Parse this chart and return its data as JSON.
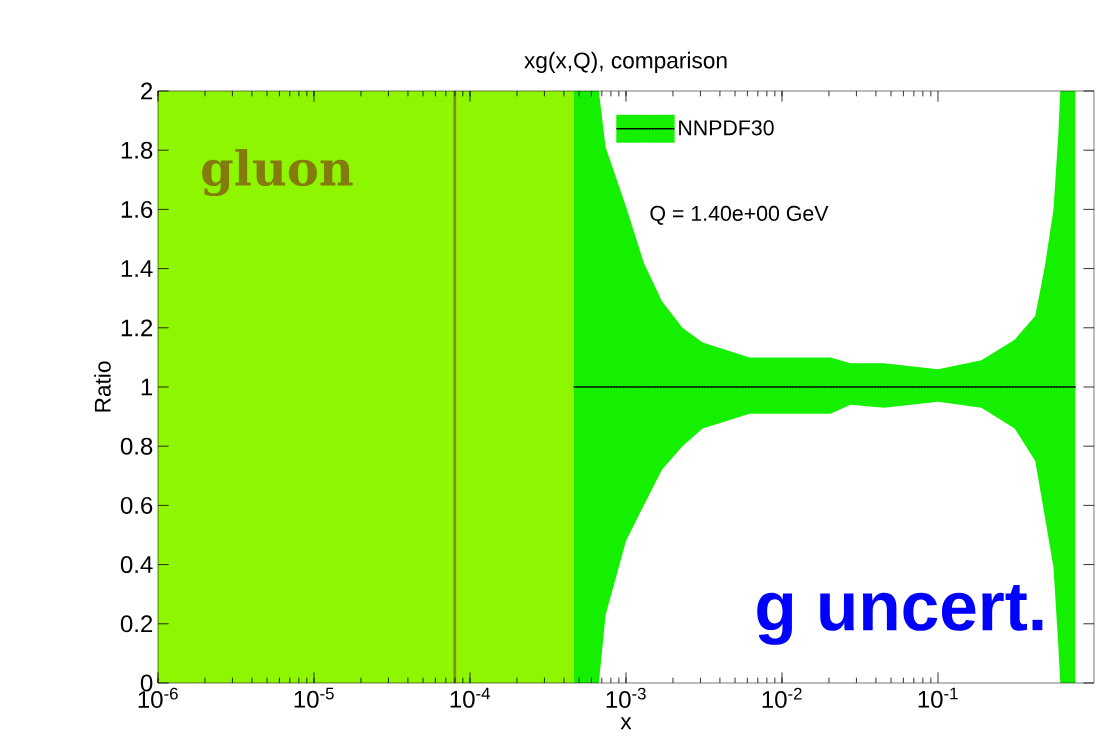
{
  "chart_data": {
    "type": "line",
    "title": "xg(x,Q), comparison",
    "xlabel": "x",
    "ylabel": "Ratio",
    "log": "x",
    "xlim": [
      1e-06,
      1
    ],
    "ylim": [
      0,
      2
    ],
    "xticks": [
      {
        "value": 1e-06,
        "label": "10$^{-6}$"
      },
      {
        "value": 1e-05,
        "label": "10$^{-5}$"
      },
      {
        "value": 0.0001,
        "label": "10$^{-4}$"
      },
      {
        "value": 0.001,
        "label": "10$^{-3}$"
      },
      {
        "value": 0.01,
        "label": "10$^{-2}$"
      },
      {
        "value": 0.1,
        "label": "10$^{-1}$"
      }
    ],
    "yticks": [
      0,
      0.2,
      0.4,
      0.6,
      0.8,
      1,
      1.2,
      1.4,
      1.6,
      1.8,
      2
    ],
    "legend": "top",
    "series": [
      {
        "name": "NNPDF30",
        "color": "#000000",
        "line_style": "dotted",
        "x": [
          0.00046,
          0.00067,
          0.00074,
          0.001,
          0.0013,
          0.0017,
          0.0023,
          0.0031,
          0.0062,
          0.0205,
          0.0275,
          0.045,
          0.1,
          0.19,
          0.31,
          0.42,
          0.485,
          0.55,
          0.59,
          0.608,
          0.76
        ],
        "values": [
          1,
          1,
          1,
          1,
          1,
          1,
          1,
          1,
          1,
          1,
          1,
          1,
          1,
          1,
          1,
          1,
          1,
          1,
          1,
          1,
          1
        ],
        "upper": [
          2,
          2,
          1.81,
          1.61,
          1.42,
          1.29,
          1.2,
          1.15,
          1.1,
          1.1,
          1.08,
          1.08,
          1.06,
          1.09,
          1.16,
          1.24,
          1.41,
          1.6,
          1.85,
          2,
          2
        ],
        "lower": [
          0,
          0,
          0.23,
          0.48,
          0.6,
          0.72,
          0.8,
          0.86,
          0.91,
          0.91,
          0.94,
          0.93,
          0.95,
          0.93,
          0.86,
          0.75,
          0.56,
          0.39,
          0.13,
          0,
          0
        ]
      }
    ],
    "bands": [
      {
        "axis": "x",
        "from": 1e-06,
        "to": 0.00046,
        "label": "gluon",
        "color": "#8ef700"
      }
    ],
    "ref_lines": [
      {
        "axis": "x",
        "value": 8e-05,
        "label": null,
        "color": "#8a8a00"
      }
    ],
    "annotations": [
      "Q = 1.40e+00 GeV",
      "g uncert."
    ]
  }
}
